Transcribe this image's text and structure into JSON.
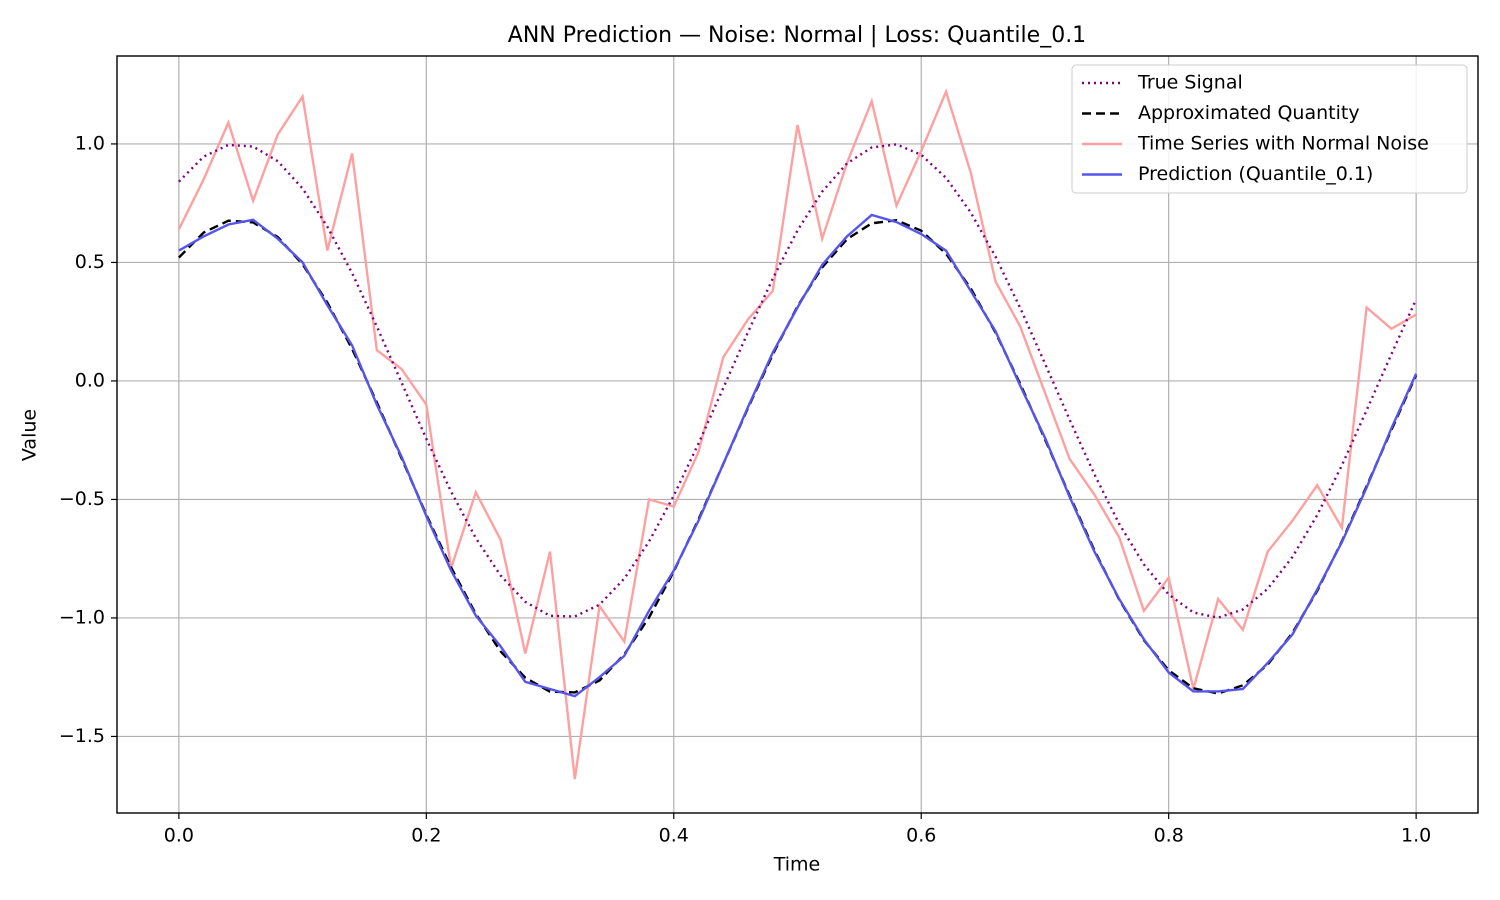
{
  "chart_data": {
    "type": "line",
    "title": "ANN Prediction — Noise: Normal | Loss: Quantile_0.1",
    "xlabel": "Time",
    "ylabel": "Value",
    "x": [
      0.0,
      0.02,
      0.04,
      0.06,
      0.08,
      0.1,
      0.12,
      0.14,
      0.16,
      0.18,
      0.2,
      0.22,
      0.24,
      0.26,
      0.28,
      0.3,
      0.32,
      0.34,
      0.36,
      0.38,
      0.4,
      0.42,
      0.44,
      0.46,
      0.48,
      0.5,
      0.52,
      0.54,
      0.56,
      0.58,
      0.6,
      0.62,
      0.64,
      0.66,
      0.68,
      0.7,
      0.72,
      0.74,
      0.76,
      0.78,
      0.8,
      0.82,
      0.84,
      0.86,
      0.88,
      0.9,
      0.92,
      0.94,
      0.96,
      0.98,
      1.0
    ],
    "series": [
      {
        "name": "True Signal",
        "color": "#800080",
        "linestyle": "dotted",
        "values": [
          0.841,
          0.946,
          0.996,
          0.989,
          0.927,
          0.812,
          0.651,
          0.455,
          0.23,
          -0.007,
          -0.244,
          -0.467,
          -0.663,
          -0.821,
          -0.932,
          -0.991,
          -0.994,
          -0.944,
          -0.834,
          -0.678,
          -0.484,
          -0.264,
          -0.03,
          0.206,
          0.432,
          0.635,
          0.799,
          0.918,
          0.985,
          0.998,
          0.954,
          0.857,
          0.711,
          0.524,
          0.308,
          0.073,
          -0.164,
          -0.394,
          -0.603,
          -0.774,
          -0.901,
          -0.977,
          -0.999,
          -0.964,
          -0.877,
          -0.743,
          -0.566,
          -0.356,
          -0.124,
          0.113,
          0.344
        ]
      },
      {
        "name": "Approximated Quantity",
        "color": "#000000",
        "linestyle": "dashed",
        "values": [
          0.521,
          0.626,
          0.676,
          0.669,
          0.607,
          0.492,
          0.331,
          0.135,
          -0.09,
          -0.327,
          -0.564,
          -0.787,
          -0.983,
          -1.141,
          -1.252,
          -1.311,
          -1.314,
          -1.264,
          -1.154,
          -0.998,
          -0.804,
          -0.584,
          -0.35,
          -0.114,
          0.112,
          0.315,
          0.479,
          0.598,
          0.665,
          0.678,
          0.634,
          0.537,
          0.391,
          0.204,
          -0.012,
          -0.247,
          -0.484,
          -0.714,
          -0.923,
          -1.094,
          -1.221,
          -1.297,
          -1.319,
          -1.284,
          -1.197,
          -1.063,
          -0.886,
          -0.676,
          -0.444,
          -0.207,
          0.024
        ]
      },
      {
        "name": "Time Series with Normal Noise",
        "color": "#ffa0a0",
        "linestyle": "solid",
        "values": [
          0.64,
          0.85,
          1.09,
          0.76,
          1.04,
          1.2,
          0.55,
          0.96,
          0.13,
          0.05,
          -0.1,
          -0.79,
          -0.47,
          -0.67,
          -1.15,
          -0.72,
          -1.68,
          -0.95,
          -1.1,
          -0.5,
          -0.53,
          -0.3,
          0.1,
          0.26,
          0.38,
          1.08,
          0.6,
          0.92,
          1.18,
          0.74,
          0.97,
          1.22,
          0.88,
          0.42,
          0.23,
          -0.05,
          -0.33,
          -0.48,
          -0.66,
          -0.97,
          -0.83,
          -1.3,
          -0.92,
          -1.05,
          -0.72,
          -0.59,
          -0.44,
          -0.62,
          0.31,
          0.22,
          0.28
        ]
      },
      {
        "name": "Prediction (Quantile_0.1)",
        "color": "#5555ee",
        "linestyle": "solid",
        "values": [
          0.55,
          0.61,
          0.66,
          0.68,
          0.6,
          0.5,
          0.32,
          0.15,
          -0.1,
          -0.32,
          -0.57,
          -0.8,
          -0.99,
          -1.12,
          -1.27,
          -1.3,
          -1.33,
          -1.25,
          -1.16,
          -0.97,
          -0.8,
          -0.59,
          -0.35,
          -0.11,
          0.12,
          0.31,
          0.49,
          0.61,
          0.7,
          0.67,
          0.62,
          0.55,
          0.38,
          0.21,
          -0.02,
          -0.24,
          -0.49,
          -0.72,
          -0.92,
          -1.09,
          -1.23,
          -1.31,
          -1.31,
          -1.3,
          -1.19,
          -1.07,
          -0.88,
          -0.68,
          -0.45,
          -0.2,
          0.03
        ]
      }
    ],
    "xlim": [
      -0.05,
      1.05
    ],
    "ylim": [
      -1.823,
      1.371
    ],
    "xticks": [
      {
        "value": 0.0,
        "label": "0.0"
      },
      {
        "value": 0.2,
        "label": "0.2"
      },
      {
        "value": 0.4,
        "label": "0.4"
      },
      {
        "value": 0.6,
        "label": "0.6"
      },
      {
        "value": 0.8,
        "label": "0.8"
      },
      {
        "value": 1.0,
        "label": "1.0"
      }
    ],
    "yticks": [
      {
        "value": -1.5,
        "label": "−1.5"
      },
      {
        "value": -1.0,
        "label": "−1.0"
      },
      {
        "value": -0.5,
        "label": "−0.5"
      },
      {
        "value": 0.0,
        "label": "0.0"
      },
      {
        "value": 0.5,
        "label": "0.5"
      },
      {
        "value": 1.0,
        "label": "1.0"
      }
    ],
    "grid": true,
    "legend": "upper-right"
  }
}
